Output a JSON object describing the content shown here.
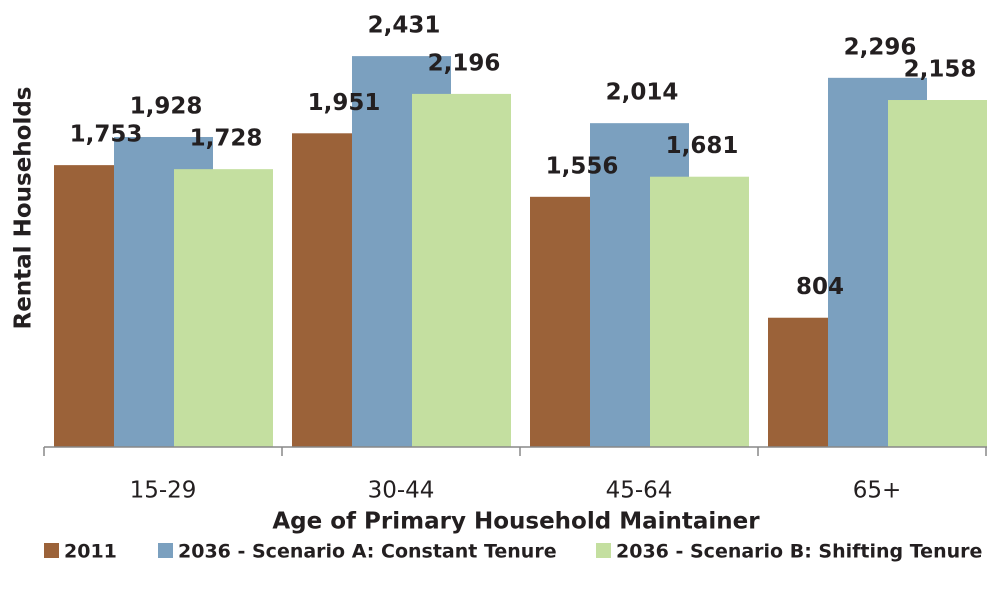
{
  "chart_data": {
    "type": "bar",
    "x_label": "Age of Primary Household Maintainer",
    "y_label": "Rental Households",
    "categories": [
      "15-29",
      "30-44",
      "45-64",
      "65+"
    ],
    "series": [
      {
        "name": "2011",
        "color": "#9b6239",
        "values": [
          1753,
          1951,
          1556,
          804
        ],
        "value_labels": [
          "1,753",
          "1,951",
          "1,556",
          "804"
        ]
      },
      {
        "name": "2036 - Scenario A: Constant Tenure",
        "color": "#7ba0bf",
        "values": [
          1928,
          2431,
          2014,
          2296
        ],
        "value_labels": [
          "1,928",
          "2,431",
          "2,014",
          "2,296"
        ]
      },
      {
        "name": "2036 - Scenario B: Shifting Tenure",
        "color": "#c4dfa0",
        "values": [
          1728,
          2196,
          1681,
          2158
        ],
        "value_labels": [
          "1,728",
          "2,196",
          "1,681",
          "2,158"
        ]
      }
    ],
    "ylim": [
      0,
      2780
    ],
    "legend": "bottom"
  }
}
